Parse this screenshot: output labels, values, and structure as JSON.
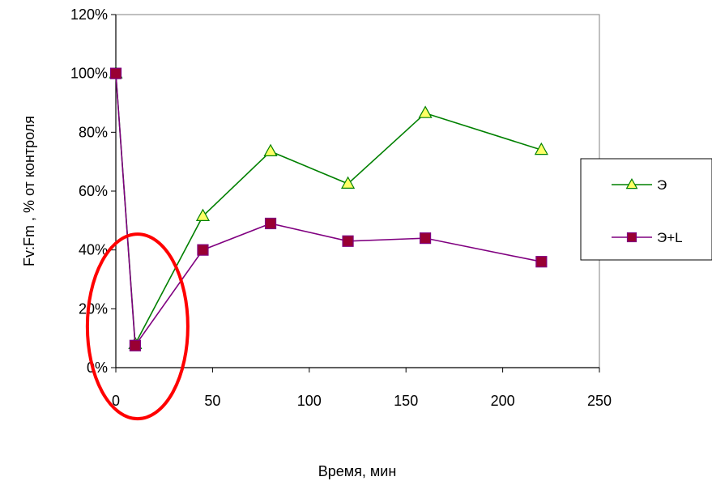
{
  "chart_data": {
    "type": "line",
    "title": "",
    "xlabel": "Время, мин",
    "ylabel": "Fv:Fm , % от контроля",
    "xlim": [
      0,
      250
    ],
    "ylim": [
      0,
      120
    ],
    "x_ticks": [
      0,
      50,
      100,
      150,
      200,
      250
    ],
    "y_ticks": [
      0,
      20,
      40,
      60,
      80,
      100,
      120
    ],
    "y_tick_labels": [
      "0%",
      "20%",
      "40%",
      "60%",
      "80%",
      "100%",
      "120%"
    ],
    "grid": false,
    "legend_position": "right",
    "series": [
      {
        "name": "Э",
        "color": "#008000",
        "marker": "triangle",
        "marker_fill": "#ffff66",
        "x": [
          0,
          10,
          45,
          80,
          120,
          160,
          220
        ],
        "y": [
          100,
          8,
          51.5,
          73.5,
          62.5,
          86.5,
          74
        ]
      },
      {
        "name": "Э+L",
        "color": "#800080",
        "marker": "square",
        "marker_fill": "#990033",
        "x": [
          0,
          10,
          45,
          80,
          120,
          160,
          220
        ],
        "y": [
          100,
          7.5,
          40,
          49,
          43,
          44,
          36
        ]
      }
    ],
    "annotations": [
      {
        "shape": "ellipse",
        "color": "#ff0000",
        "target": "минимум около 10 мин"
      }
    ]
  }
}
